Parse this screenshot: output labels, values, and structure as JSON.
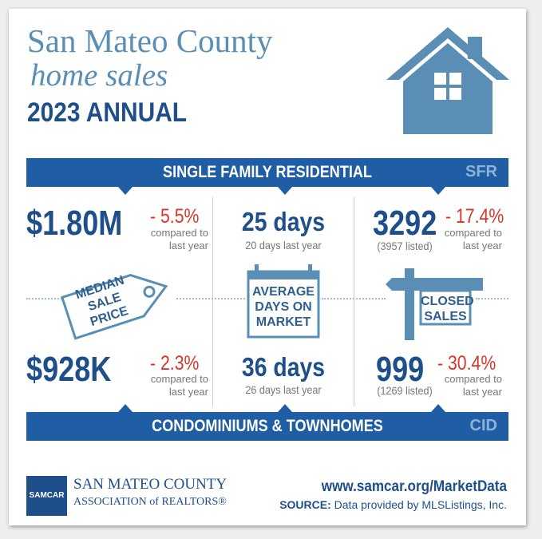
{
  "header": {
    "title_line1": "San Mateo County",
    "title_line2": "home sales",
    "title_line3": "2023 ANNUAL"
  },
  "colors": {
    "navy": "#1f4f8a",
    "banner_blue": "#1f5da4",
    "light_blue": "#5a8eb5",
    "red": "#d9352c",
    "gray_text": "#777777"
  },
  "sfr_banner": {
    "label": "SINGLE FAMILY RESIDENTIAL",
    "tag": "SFR"
  },
  "cid_banner": {
    "label": "CONDOMINIUMS & TOWNHOMES",
    "tag": "CID"
  },
  "median_price": {
    "icon_label": "MEDIAN\nSALE\nPRICE",
    "sfr": {
      "value": "$1.80M",
      "change": "- 5.5%",
      "compare": "compared to\nlast year"
    },
    "cid": {
      "value": "$928K",
      "change": "- 2.3%",
      "compare": "compared to\nlast year"
    }
  },
  "days_on_market": {
    "icon_label": "AVERAGE\nDAYS ON\nMARKET",
    "sfr": {
      "value": "25 days",
      "sub": "20 days last year"
    },
    "cid": {
      "value": "36 days",
      "sub": "26 days last year"
    }
  },
  "closed_sales": {
    "icon_label": "CLOSED\nSALES",
    "sfr": {
      "value": "3292",
      "listed": "(3957 listed)",
      "change": "- 17.4%",
      "compare": "compared to\nlast year"
    },
    "cid": {
      "value": "999",
      "listed": "(1269 listed)",
      "change": "- 30.4%",
      "compare": "compared to\nlast year"
    }
  },
  "footer": {
    "logo_text": "SAMCAR",
    "org_name": "SAN MATEO COUNTY",
    "org_assoc": "ASSOCIATION of REALTORS®",
    "url": "www.samcar.org/MarketData",
    "source_label": "SOURCE:",
    "source_text": " Data provided by MLSListings, Inc."
  },
  "icons": [
    "house-icon",
    "price-tag-icon",
    "calendar-icon",
    "sign-post-icon"
  ]
}
